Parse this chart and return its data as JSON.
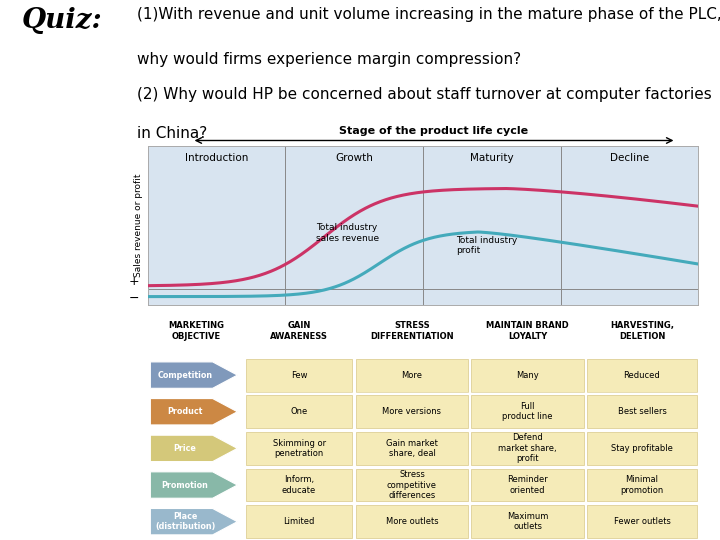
{
  "title_quiz": "Quiz:",
  "title_text_line1": "(1)With revenue and unit volume increasing in the mature phase of the PLC,",
  "title_text_line2": "why would firms experience margin compression?",
  "title_text_line3": "(2) Why would HP be concerned about staff turnover at computer factories",
  "title_text_line4": "in China?",
  "bg_color": "#ffffff",
  "chart_bg_color": "#d8e4f0",
  "table_header_bg": "#f0e8c8",
  "cell_bg": "#f5ebb8",
  "stages": [
    "Introduction",
    "Growth",
    "Maturity",
    "Decline"
  ],
  "row_labels": [
    "Competition",
    "Product",
    "Price",
    "Promotion",
    "Place\n(distribution)"
  ],
  "row_colors": [
    "#8099bb",
    "#cc8844",
    "#d4c87a",
    "#88b8a8",
    "#99b8cc"
  ],
  "col_headers": [
    "MARKETING\nOBJECTIVE",
    "GAIN\nAWARENESS",
    "STRESS\nDIFFERENTIATION",
    "MAINTAIN BRAND\nLOYALTY",
    "HARVESTING,\nDELETION"
  ],
  "table_data": [
    [
      "Few",
      "More",
      "Many",
      "Reduced"
    ],
    [
      "One",
      "More versions",
      "Full\nproduct line",
      "Best sellers"
    ],
    [
      "Skimming or\npenetration",
      "Gain market\nshare, deal",
      "Defend\nmarket share,\nprofit",
      "Stay profitable"
    ],
    [
      "Inform,\neducate",
      "Stress\ncompetitive\ndifferences",
      "Reminder\noriented",
      "Minimal\npromotion"
    ],
    [
      "Limited",
      "More outlets",
      "Maximum\noutlets",
      "Fewer outlets"
    ]
  ],
  "revenue_color": "#cc3366",
  "profit_color": "#44aabb",
  "text_fontsize": 11,
  "quiz_fontsize": 20
}
